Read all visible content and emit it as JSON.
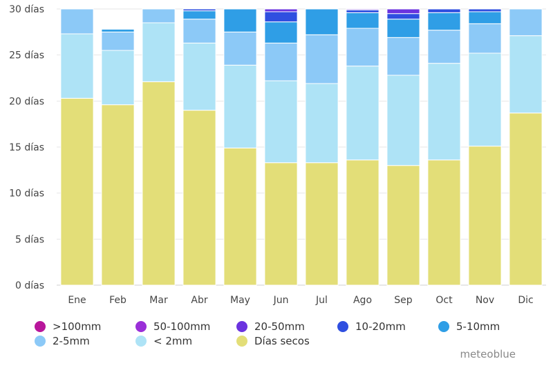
{
  "chart_data": {
    "type": "bar",
    "stacked": true,
    "categories": [
      "Ene",
      "Feb",
      "Mar",
      "Abr",
      "May",
      "Jun",
      "Jul",
      "Ago",
      "Sep",
      "Oct",
      "Nov",
      "Dic"
    ],
    "ylim": [
      0,
      30
    ],
    "ytick_labels": [
      "0 días",
      "5 días",
      "10 días",
      "15 días",
      "20 días",
      "25 días",
      "30 días"
    ],
    "series": [
      {
        "name": "Días secos",
        "color": "#e3de78",
        "values": [
          20.3,
          19.6,
          22.1,
          19.0,
          14.9,
          13.3,
          13.3,
          13.6,
          13.0,
          13.6,
          15.1,
          18.7
        ]
      },
      {
        "name": "< 2mm",
        "color": "#aee3f6",
        "values": [
          7.0,
          5.9,
          6.4,
          7.3,
          9.0,
          8.9,
          8.6,
          10.2,
          9.8,
          10.5,
          10.1,
          8.4
        ]
      },
      {
        "name": "2-5mm",
        "color": "#8cc9f7",
        "values": [
          2.7,
          2.0,
          1.5,
          2.6,
          3.6,
          4.1,
          5.3,
          4.1,
          4.1,
          3.6,
          3.2,
          2.9
        ]
      },
      {
        "name": "5-10mm",
        "color": "#2f9ee6",
        "values": [
          0.0,
          0.3,
          0.0,
          0.9,
          2.5,
          2.3,
          2.8,
          1.7,
          2.0,
          1.9,
          1.3,
          0.0
        ]
      },
      {
        "name": "10-20mm",
        "color": "#2f4fe0",
        "values": [
          0.0,
          0.0,
          0.0,
          0.2,
          0.0,
          1.1,
          0.0,
          0.3,
          0.6,
          0.4,
          0.3,
          0.0
        ]
      },
      {
        "name": "20-50mm",
        "color": "#6b33df",
        "values": [
          0.0,
          0.0,
          0.0,
          0.0,
          0.0,
          0.3,
          0.0,
          0.1,
          0.5,
          0.0,
          0.0,
          0.0
        ]
      },
      {
        "name": "50-100mm",
        "color": "#9a2fd8",
        "values": [
          0.0,
          0.0,
          0.0,
          0.0,
          0.0,
          0.0,
          0.0,
          0.0,
          0.0,
          0.0,
          0.0,
          0.0
        ]
      },
      {
        "name": ">100mm",
        "color": "#b8169b",
        "values": [
          0.0,
          0.0,
          0.0,
          0.0,
          0.0,
          0.0,
          0.0,
          0.0,
          0.0,
          0.0,
          0.0,
          0.0
        ]
      }
    ],
    "legend": [
      {
        "label": ">100mm",
        "color": "#b8169b"
      },
      {
        "label": "50-100mm",
        "color": "#9a2fd8"
      },
      {
        "label": "20-50mm",
        "color": "#6b33df"
      },
      {
        "label": "10-20mm",
        "color": "#2f4fe0"
      },
      {
        "label": "5-10mm",
        "color": "#2f9ee6"
      },
      {
        "label": "2-5mm",
        "color": "#8cc9f7"
      },
      {
        "label": "< 2mm",
        "color": "#aee3f6"
      },
      {
        "label": "Días secos",
        "color": "#e3de78"
      }
    ],
    "legend_position": "bottom",
    "grid": true
  },
  "brand": "meteoblue"
}
